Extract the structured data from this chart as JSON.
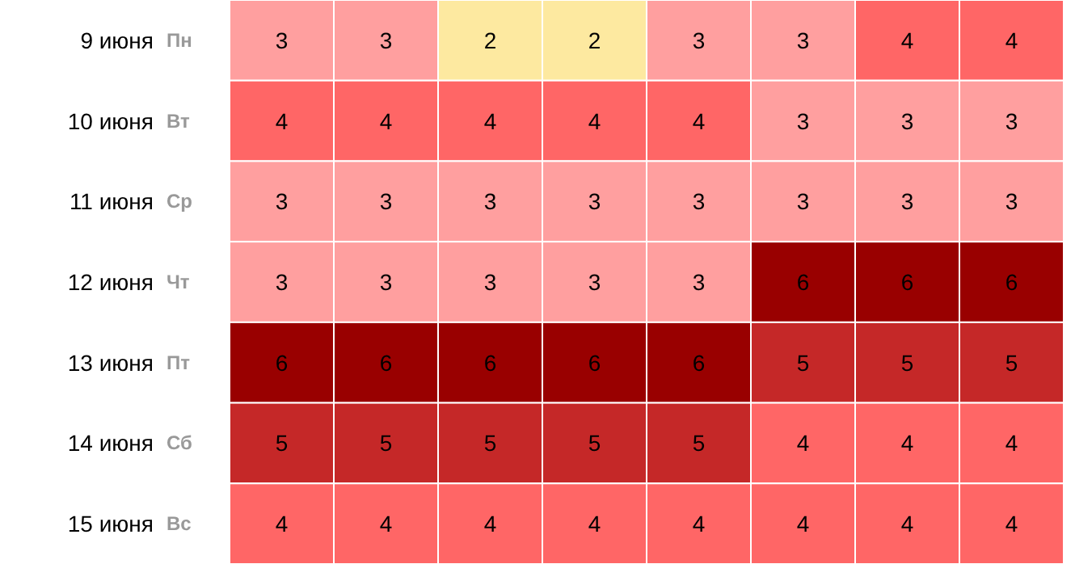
{
  "chart_data": {
    "type": "heatmap",
    "categories": [
      null,
      null,
      null,
      null,
      null,
      null,
      null,
      null
    ],
    "y_categories": [
      "9 июня",
      "10 июня",
      "11 июня",
      "12 июня",
      "13 июня",
      "14 июня",
      "15 июня"
    ],
    "y2_categories": [
      "Пн",
      "Вт",
      "Ср",
      "Чт",
      "Пт",
      "Сб",
      "Вс"
    ],
    "cells": [
      [
        3,
        3,
        2,
        2,
        3,
        3,
        4,
        4
      ],
      [
        4,
        4,
        4,
        4,
        4,
        3,
        3,
        3
      ],
      [
        3,
        3,
        3,
        3,
        3,
        3,
        3,
        3
      ],
      [
        3,
        3,
        3,
        3,
        3,
        6,
        6,
        6
      ],
      [
        6,
        6,
        6,
        6,
        6,
        5,
        5,
        5
      ],
      [
        5,
        5,
        5,
        5,
        5,
        4,
        4,
        4
      ],
      [
        4,
        4,
        4,
        4,
        4,
        4,
        4,
        4
      ]
    ],
    "colors": [
      [
        "#ff9f9f",
        "#ff9f9f",
        "#fde9a0",
        "#fde9a0",
        "#ff9f9f",
        "#ff9f9f",
        "#ff6666",
        "#ff6666"
      ],
      [
        "#ff6666",
        "#ff6666",
        "#ff6666",
        "#ff6666",
        "#ff6666",
        "#ff9f9f",
        "#ff9f9f",
        "#ff9f9f"
      ],
      [
        "#ff9f9f",
        "#ff9f9f",
        "#ff9f9f",
        "#ff9f9f",
        "#ff9f9f",
        "#ff9f9f",
        "#ff9f9f",
        "#ff9f9f"
      ],
      [
        "#ff9f9f",
        "#ff9f9f",
        "#ff9f9f",
        "#ff9f9f",
        "#ff9f9f",
        "#990000",
        "#990000",
        "#990000"
      ],
      [
        "#990000",
        "#990000",
        "#990000",
        "#990000",
        "#990000",
        "#c52828",
        "#c52828",
        "#c52828"
      ],
      [
        "#c52828",
        "#c52828",
        "#c52828",
        "#c52828",
        "#c52828",
        "#ff6666",
        "#ff6666",
        "#ff6666"
      ],
      [
        "#ff6666",
        "#ff6666",
        "#ff6666",
        "#ff6666",
        "#ff6666",
        "#ff6666",
        "#ff6666",
        "#ff6666"
      ]
    ],
    "data_labels": true
  }
}
